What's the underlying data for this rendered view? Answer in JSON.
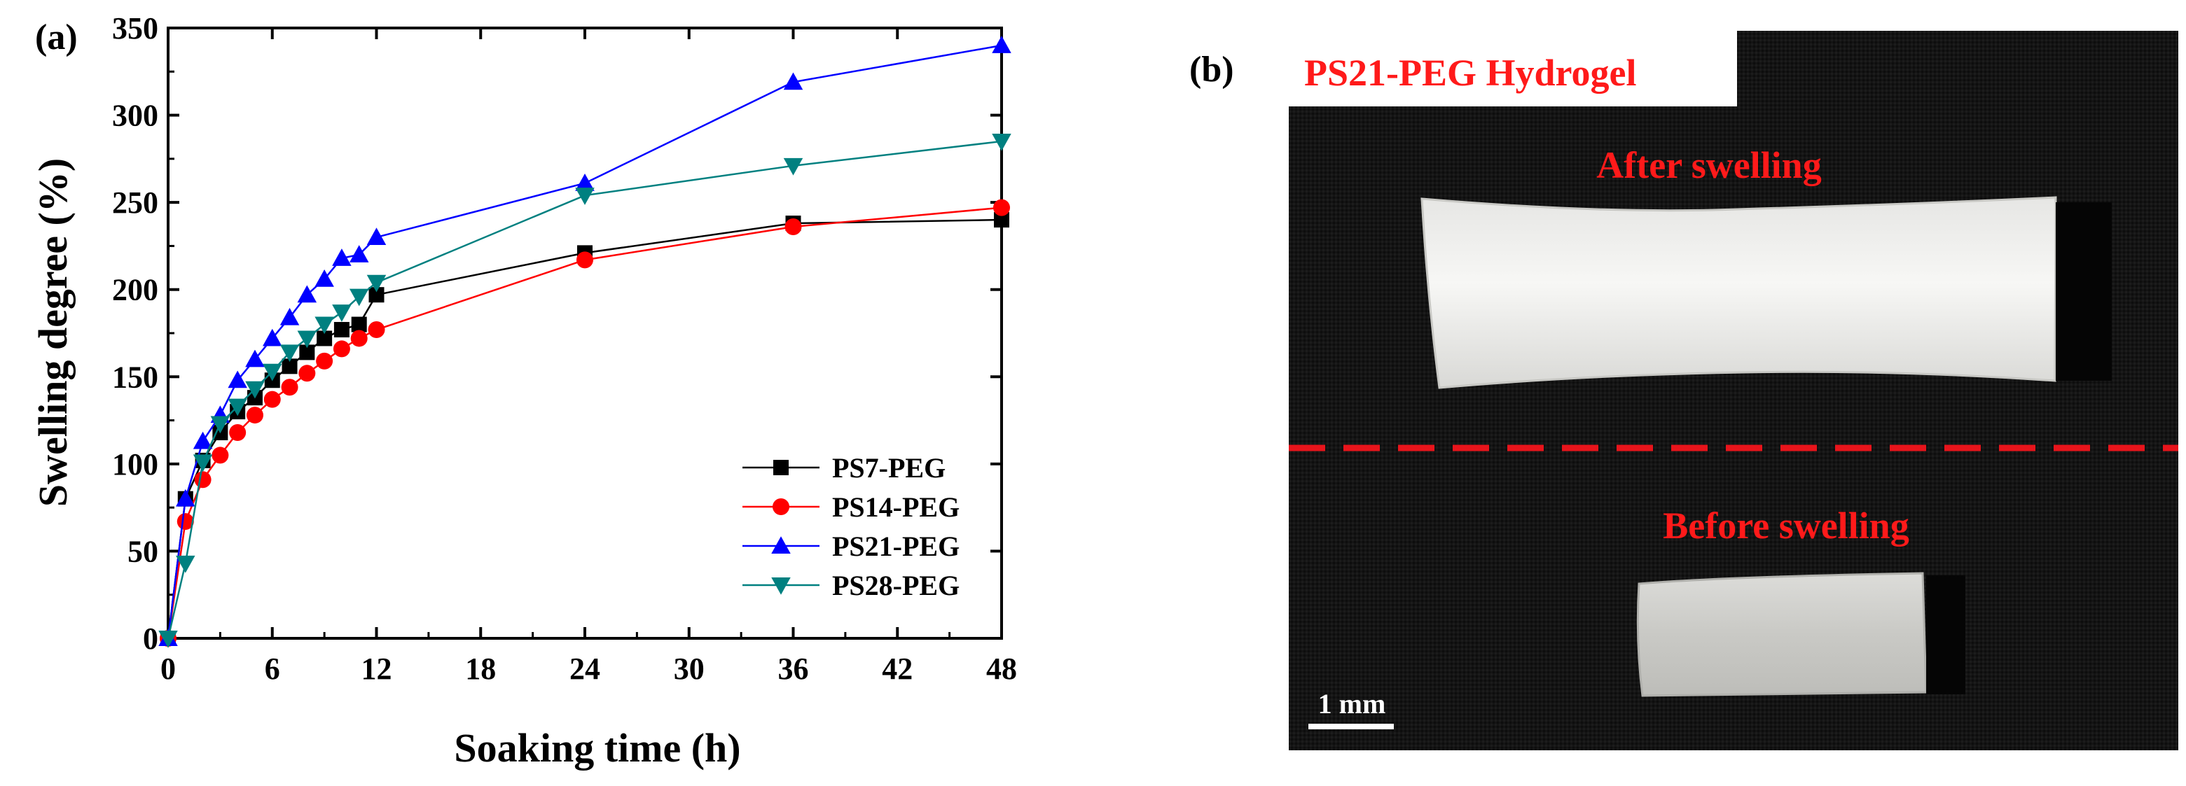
{
  "panel_a": {
    "label": "(a)"
  },
  "panel_b": {
    "label": "(b)",
    "title": "PS21-PEG Hydrogel",
    "after_caption": "After swelling",
    "before_caption": "Before swelling",
    "scale_bar_label": "1 mm"
  },
  "colors": {
    "PS7-PEG": "#000000",
    "PS14-PEG": "#ff0000",
    "PS21-PEG": "#0000ff",
    "PS28-PEG": "#008080",
    "caption_red": "#ff1a1a",
    "divider_red": "#e8141b"
  },
  "chart_data": {
    "type": "line",
    "title": "",
    "xlabel": "Soaking time (h)",
    "ylabel": "Swelling degree (%)",
    "xlim": [
      0,
      48
    ],
    "ylim": [
      0,
      350
    ],
    "xticks": [
      0,
      6,
      12,
      18,
      24,
      30,
      36,
      42,
      48
    ],
    "yticks": [
      0,
      50,
      100,
      150,
      200,
      250,
      300,
      350
    ],
    "legend_position": "bottom-right",
    "series": [
      {
        "name": "PS7-PEG",
        "marker": "square",
        "x": [
          0,
          1,
          2,
          3,
          4,
          5,
          6,
          7,
          8,
          9,
          10,
          11,
          12,
          24,
          36,
          48
        ],
        "y": [
          0,
          80,
          102,
          118,
          130,
          138,
          148,
          156,
          164,
          172,
          177,
          180,
          197,
          221,
          238,
          240
        ]
      },
      {
        "name": "PS14-PEG",
        "marker": "circle",
        "x": [
          0,
          1,
          2,
          3,
          4,
          5,
          6,
          7,
          8,
          9,
          10,
          11,
          12,
          24,
          36,
          48
        ],
        "y": [
          0,
          67,
          91,
          105,
          118,
          128,
          137,
          144,
          152,
          159,
          166,
          172,
          177,
          217,
          236,
          247
        ]
      },
      {
        "name": "PS21-PEG",
        "marker": "triangle-up",
        "x": [
          0,
          1,
          2,
          3,
          4,
          5,
          6,
          7,
          8,
          9,
          10,
          11,
          12,
          24,
          36,
          48
        ],
        "y": [
          0,
          80,
          113,
          128,
          148,
          160,
          172,
          184,
          197,
          206,
          218,
          220,
          230,
          261,
          319,
          340
        ]
      },
      {
        "name": "PS28-PEG",
        "marker": "triangle-down",
        "x": [
          0,
          1,
          2,
          3,
          4,
          5,
          6,
          7,
          8,
          9,
          10,
          11,
          12,
          24,
          36,
          48
        ],
        "y": [
          0,
          43,
          101,
          123,
          133,
          143,
          153,
          164,
          172,
          180,
          187,
          196,
          204,
          254,
          271,
          285
        ]
      }
    ]
  }
}
